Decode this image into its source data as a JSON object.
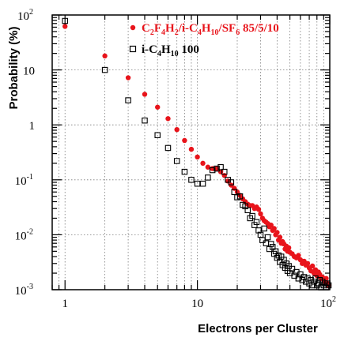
{
  "chart_data": {
    "type": "scatter",
    "title": "",
    "xlabel": "Electrons per Cluster",
    "ylabel": "Probability (%)",
    "x_scale": "log",
    "y_scale": "log",
    "xlim": [
      0.8,
      100
    ],
    "ylim": [
      0.001,
      100
    ],
    "grid": true,
    "legend_position": "top-right",
    "x_tick_labels": [
      {
        "value": 1,
        "base": "1",
        "exp": ""
      },
      {
        "value": 10,
        "base": "10",
        "exp": ""
      },
      {
        "value": 100,
        "base": "10",
        "exp": "2"
      }
    ],
    "y_tick_labels": [
      {
        "value": 0.001,
        "base": "10",
        "exp": "-3"
      },
      {
        "value": 0.01,
        "base": "10",
        "exp": "-2"
      },
      {
        "value": 0.1,
        "base": "10",
        "exp": "-1"
      },
      {
        "value": 1,
        "base": "1",
        "exp": ""
      },
      {
        "value": 10,
        "base": "10",
        "exp": ""
      },
      {
        "value": 100,
        "base": "10",
        "exp": "2"
      }
    ],
    "series": [
      {
        "legend_parts": [
          {
            "t": "C",
            "sub": false
          },
          {
            "t": "2",
            "sub": true
          },
          {
            "t": "F",
            "sub": false
          },
          {
            "t": "4",
            "sub": true
          },
          {
            "t": "H",
            "sub": false
          },
          {
            "t": "2",
            "sub": true
          },
          {
            "t": "/i-C",
            "sub": false
          },
          {
            "t": "4",
            "sub": true
          },
          {
            "t": "H",
            "sub": false
          },
          {
            "t": "10",
            "sub": true
          },
          {
            "t": "/SF",
            "sub": false
          },
          {
            "t": "6",
            "sub": true
          },
          {
            "t": " 85/5/10",
            "sub": false
          }
        ],
        "marker": "filled-circle",
        "color": "#e8141b",
        "x": [
          1,
          2,
          3,
          4,
          5,
          6,
          7,
          8,
          9,
          10,
          11,
          12,
          13,
          14,
          15,
          16,
          17,
          18,
          19,
          20,
          21,
          22,
          23,
          24,
          25,
          26,
          27,
          28,
          29,
          30,
          31,
          32,
          33,
          34,
          35,
          36,
          37,
          38,
          39,
          40,
          41,
          42,
          43,
          44,
          45,
          46,
          47,
          48,
          49,
          50,
          52,
          54,
          56,
          58,
          60,
          62,
          64,
          66,
          68,
          70,
          72,
          74,
          76,
          78,
          80,
          82,
          84,
          86,
          88,
          90,
          92,
          94,
          96,
          98
        ],
        "y": [
          62,
          18,
          7.2,
          3.6,
          2.1,
          1.3,
          0.82,
          0.52,
          0.36,
          0.26,
          0.2,
          0.17,
          0.16,
          0.16,
          0.14,
          0.12,
          0.095,
          0.08,
          0.07,
          0.06,
          0.052,
          0.045,
          0.04,
          0.036,
          0.034,
          0.034,
          0.03,
          0.032,
          0.029,
          0.024,
          0.02,
          0.018,
          0.017,
          0.016,
          0.014,
          0.015,
          0.012,
          0.013,
          0.01,
          0.011,
          0.008,
          0.009,
          0.007,
          0.0075,
          0.0068,
          0.0055,
          0.0062,
          0.005,
          0.0058,
          0.0048,
          0.0045,
          0.004,
          0.0038,
          0.0042,
          0.0035,
          0.003,
          0.0033,
          0.0028,
          0.003,
          0.0025,
          0.0022,
          0.0027,
          0.002,
          0.0023,
          0.0018,
          0.0021,
          0.0019,
          0.0016,
          0.0017,
          0.0015,
          0.0014,
          0.0016,
          0.0013,
          0.0012
        ]
      },
      {
        "legend_parts": [
          {
            "t": "i-C",
            "sub": false
          },
          {
            "t": "4",
            "sub": true
          },
          {
            "t": "H",
            "sub": false
          },
          {
            "t": "10",
            "sub": true
          },
          {
            "t": " 100",
            "sub": false
          }
        ],
        "marker": "open-square",
        "color": "#000000",
        "x": [
          1,
          2,
          3,
          4,
          5,
          6,
          7,
          8,
          9,
          10,
          11,
          12,
          13,
          14,
          15,
          16,
          17,
          18,
          19,
          20,
          21,
          22,
          23,
          24,
          25,
          26,
          27,
          28,
          29,
          30,
          31,
          32,
          33,
          34,
          35,
          36,
          37,
          38,
          39,
          40,
          41,
          42,
          43,
          44,
          45,
          46,
          47,
          48,
          49,
          50,
          52,
          54,
          56,
          58,
          60,
          62,
          64,
          66,
          68,
          70,
          72,
          74,
          76,
          78,
          80,
          82,
          84,
          86,
          88,
          90,
          92,
          94,
          96,
          98
        ],
        "y": [
          78,
          10,
          2.8,
          1.2,
          0.65,
          0.38,
          0.22,
          0.14,
          0.1,
          0.085,
          0.085,
          0.11,
          0.15,
          0.16,
          0.17,
          0.14,
          0.1,
          0.09,
          0.06,
          0.048,
          0.05,
          0.035,
          0.033,
          0.028,
          0.02,
          0.022,
          0.015,
          0.017,
          0.012,
          0.01,
          0.008,
          0.013,
          0.007,
          0.009,
          0.0055,
          0.0068,
          0.006,
          0.0045,
          0.005,
          0.0038,
          0.0042,
          0.0032,
          0.004,
          0.0028,
          0.0035,
          0.0025,
          0.003,
          0.0022,
          0.0027,
          0.002,
          0.0024,
          0.0018,
          0.0021,
          0.0016,
          0.0019,
          0.0015,
          0.0017,
          0.0014,
          0.0016,
          0.0013,
          0.0015,
          0.0012,
          0.0014,
          0.0016,
          0.0012,
          0.0013,
          0.0015,
          0.0011,
          0.0014,
          0.0012,
          0.0013,
          0.0011,
          0.0013,
          0.0012
        ]
      }
    ]
  }
}
